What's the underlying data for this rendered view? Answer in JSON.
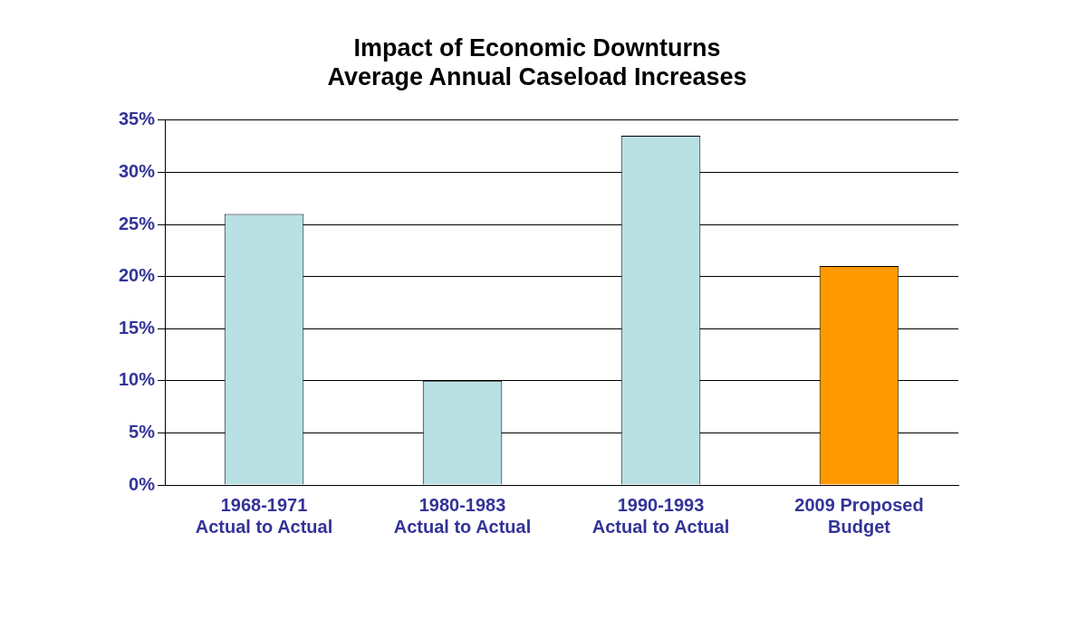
{
  "chart_data": {
    "type": "bar",
    "title": "Impact of Economic Downturns\nAverage Annual Caseload Increases",
    "categories": [
      "1968-1971\nActual to Actual",
      "1980-1983\nActual to Actual",
      "1990-1993\nActual to Actual",
      "2009 Proposed\nBudget"
    ],
    "values": [
      26,
      10,
      33.5,
      21
    ],
    "colors": [
      "#b9e0e3",
      "#b9e0e3",
      "#b9e0e3",
      "#ff9900"
    ],
    "ylim": [
      0,
      35
    ],
    "yticks": [
      {
        "value": 0,
        "label": "0%"
      },
      {
        "value": 5,
        "label": "5%"
      },
      {
        "value": 10,
        "label": "10%"
      },
      {
        "value": 15,
        "label": "15%"
      },
      {
        "value": 20,
        "label": "20%"
      },
      {
        "value": 25,
        "label": "25%"
      },
      {
        "value": 30,
        "label": "30%"
      },
      {
        "value": 35,
        "label": "35%"
      }
    ],
    "grid": "y",
    "legend": false
  }
}
